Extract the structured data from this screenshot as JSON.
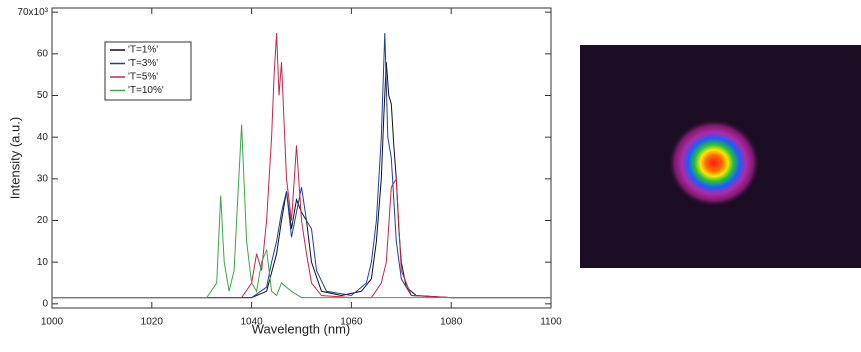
{
  "chart_data": {
    "type": "line",
    "xlabel": "Wavelength (nm)",
    "ylabel": "Intensity (a.u.)",
    "xlim": [
      1000,
      1100
    ],
    "xticks": [
      1000,
      1020,
      1040,
      1060,
      1080,
      1100
    ],
    "ylim": [
      -1,
      71
    ],
    "yticks": [
      0,
      10,
      20,
      30,
      40,
      50,
      60,
      {
        "value": 70,
        "label": "70x10³"
      }
    ],
    "legend": "upper left",
    "series": [
      {
        "name": "'T=1%'",
        "color": "#111111",
        "x": [
          1000,
          1040,
          1043,
          1045,
          1046,
          1047,
          1048,
          1049,
          1050,
          1051,
          1052,
          1054,
          1058,
          1062,
          1064,
          1065,
          1066,
          1066.5,
          1067,
          1067.5,
          1068,
          1068.5,
          1069,
          1069.5,
          1070,
          1071,
          1073,
          1080,
          1100
        ],
        "values": [
          1.5,
          1.5,
          3,
          12,
          20,
          27,
          18,
          25,
          22,
          20,
          10,
          3,
          2,
          3,
          6,
          15,
          30,
          45,
          58,
          50,
          48,
          38,
          30,
          18,
          10,
          4,
          2,
          1.5,
          1.5
        ]
      },
      {
        "name": "'T=3%'",
        "color": "#1f3f9f",
        "x": [
          1000,
          1040,
          1043,
          1044,
          1045,
          1046,
          1047,
          1048,
          1049,
          1050,
          1051,
          1052,
          1053,
          1055,
          1060,
          1063,
          1064,
          1065,
          1066,
          1066.7,
          1067.3,
          1068,
          1068.5,
          1069,
          1070,
          1072,
          1080,
          1100
        ],
        "values": [
          1.5,
          1.5,
          4,
          10,
          15,
          22,
          27,
          16,
          22,
          28,
          20,
          18,
          8,
          3,
          2,
          5,
          10,
          20,
          40,
          65,
          40,
          35,
          25,
          15,
          6,
          2,
          1.5,
          1.5
        ]
      },
      {
        "name": "'T=5%'",
        "color": "#c0284a",
        "x": [
          1000,
          1038,
          1040,
          1041,
          1042,
          1043,
          1044,
          1044.5,
          1045,
          1045.5,
          1046,
          1047,
          1048,
          1049,
          1050,
          1051,
          1052,
          1054,
          1060,
          1064,
          1066,
          1067,
          1068,
          1069,
          1070,
          1072,
          1080,
          1100
        ],
        "values": [
          1.5,
          1.5,
          5,
          12,
          8,
          20,
          40,
          55,
          65,
          50,
          58,
          30,
          20,
          38,
          20,
          12,
          5,
          2,
          1.5,
          1.5,
          5,
          10,
          28,
          30,
          8,
          2,
          1.5,
          1.5
        ]
      },
      {
        "name": "'T=10%'",
        "color": "#3aa845",
        "x": [
          1000,
          1031,
          1033,
          1033.8,
          1034.5,
          1035.5,
          1036.5,
          1037,
          1038,
          1039,
          1040,
          1041,
          1042,
          1043,
          1044,
          1045,
          1046,
          1047,
          1048,
          1050,
          1060,
          1100
        ],
        "values": [
          1.5,
          1.5,
          5,
          26,
          10,
          3,
          8,
          20,
          43,
          15,
          5,
          3,
          10,
          13,
          3,
          2,
          5,
          4,
          3,
          1.5,
          1.5,
          1.5
        ]
      }
    ]
  }
}
